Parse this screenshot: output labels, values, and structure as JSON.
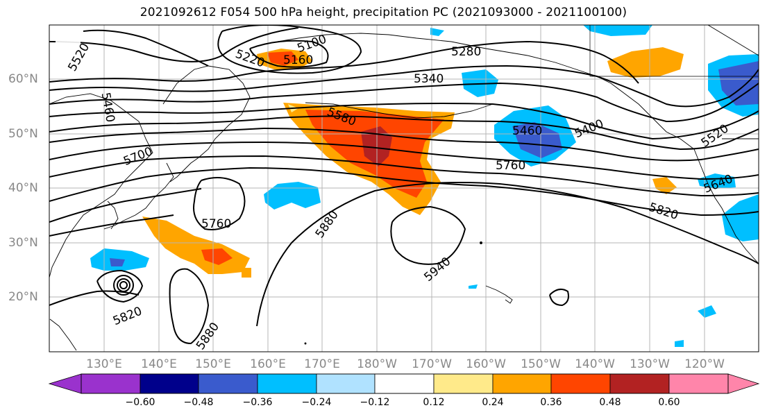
{
  "title": "2021092612 F054 500 hPa height, precipitation PC (2021093000 - 2021100100)",
  "lon_labels": [
    "130°E",
    "140°E",
    "150°E",
    "160°E",
    "170°E",
    "180°W",
    "170°W",
    "160°W",
    "150°W",
    "140°W",
    "130°W",
    "120°W"
  ],
  "lat_labels": [
    "60°N",
    "50°N",
    "40°N",
    "30°N",
    "20°N"
  ],
  "contour_labels": [
    "5520",
    "5460",
    "5220",
    "5160",
    "5100",
    "5280",
    "5340",
    "5580",
    "5460",
    "5400",
    "5520",
    "5700",
    "5760",
    "5640",
    "5880",
    "5760",
    "5820",
    "5940",
    "5820",
    "5880"
  ],
  "colorbar": {
    "ticks": [
      "−0.60",
      "−0.48",
      "−0.36",
      "−0.24",
      "−0.12",
      "0.12",
      "0.24",
      "0.36",
      "0.48",
      "0.60"
    ],
    "colors": [
      "#9a32cd",
      "#00008b",
      "#3a5bcd",
      "#00bfff",
      "#b0e2ff",
      "#ffffff",
      "#ffea8a",
      "#ffa500",
      "#ff4500",
      "#b22222",
      "#ff85aa"
    ]
  }
}
